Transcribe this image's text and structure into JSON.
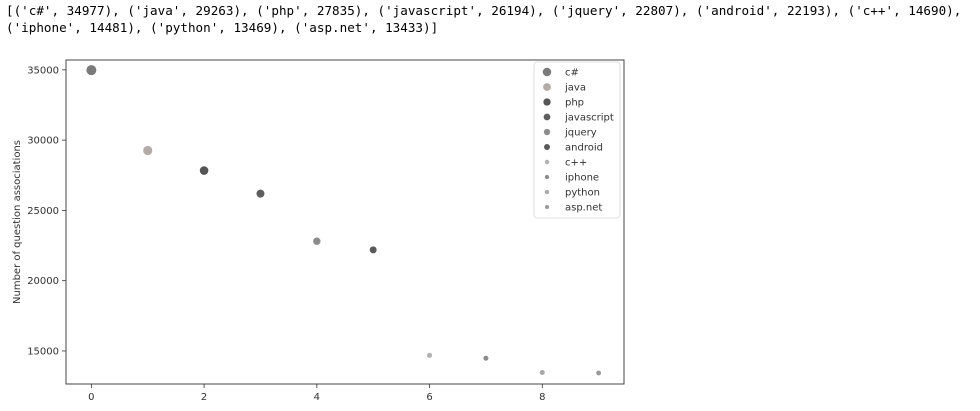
{
  "output": {
    "text": "[('c#', 34977), ('java', 29263), ('php', 27835), ('javascript', 26194), ('jquery', 22807), ('android', 22193), ('c++', 14690), ('iphone', 14481), ('python', 13469), ('asp.net', 13433)]"
  },
  "chart_data": {
    "type": "scatter",
    "title": "",
    "xlabel": "",
    "ylabel": "Number of question associations",
    "xlim": [
      -0.45,
      9.45
    ],
    "ylim": [
      12650,
      35700
    ],
    "xticks": [
      0,
      2,
      4,
      6,
      8
    ],
    "yticks": [
      15000,
      20000,
      25000,
      30000,
      35000
    ],
    "grid": false,
    "legend_position": "top-right",
    "series": [
      {
        "name": "c#",
        "x": 0,
        "y": 34977,
        "color": "#7a7a7a",
        "size": 5
      },
      {
        "name": "java",
        "x": 1,
        "y": 29263,
        "color": "#b5aba6",
        "size": 4.6
      },
      {
        "name": "php",
        "x": 2,
        "y": 27835,
        "color": "#555555",
        "size": 4.3
      },
      {
        "name": "javascript",
        "x": 3,
        "y": 26194,
        "color": "#5e5e5e",
        "size": 4
      },
      {
        "name": "jquery",
        "x": 4,
        "y": 22807,
        "color": "#8c8c8c",
        "size": 3.7
      },
      {
        "name": "android",
        "x": 5,
        "y": 22193,
        "color": "#5a5a5a",
        "size": 3.5
      },
      {
        "name": "c++",
        "x": 6,
        "y": 14690,
        "color": "#b3b3b3",
        "size": 2.6
      },
      {
        "name": "iphone",
        "x": 7,
        "y": 14481,
        "color": "#8a8a8a",
        "size": 2.5
      },
      {
        "name": "python",
        "x": 8,
        "y": 13469,
        "color": "#a8a8a8",
        "size": 2.5
      },
      {
        "name": "asp.net",
        "x": 9,
        "y": 13433,
        "color": "#9a9a9a",
        "size": 2.4
      }
    ]
  }
}
